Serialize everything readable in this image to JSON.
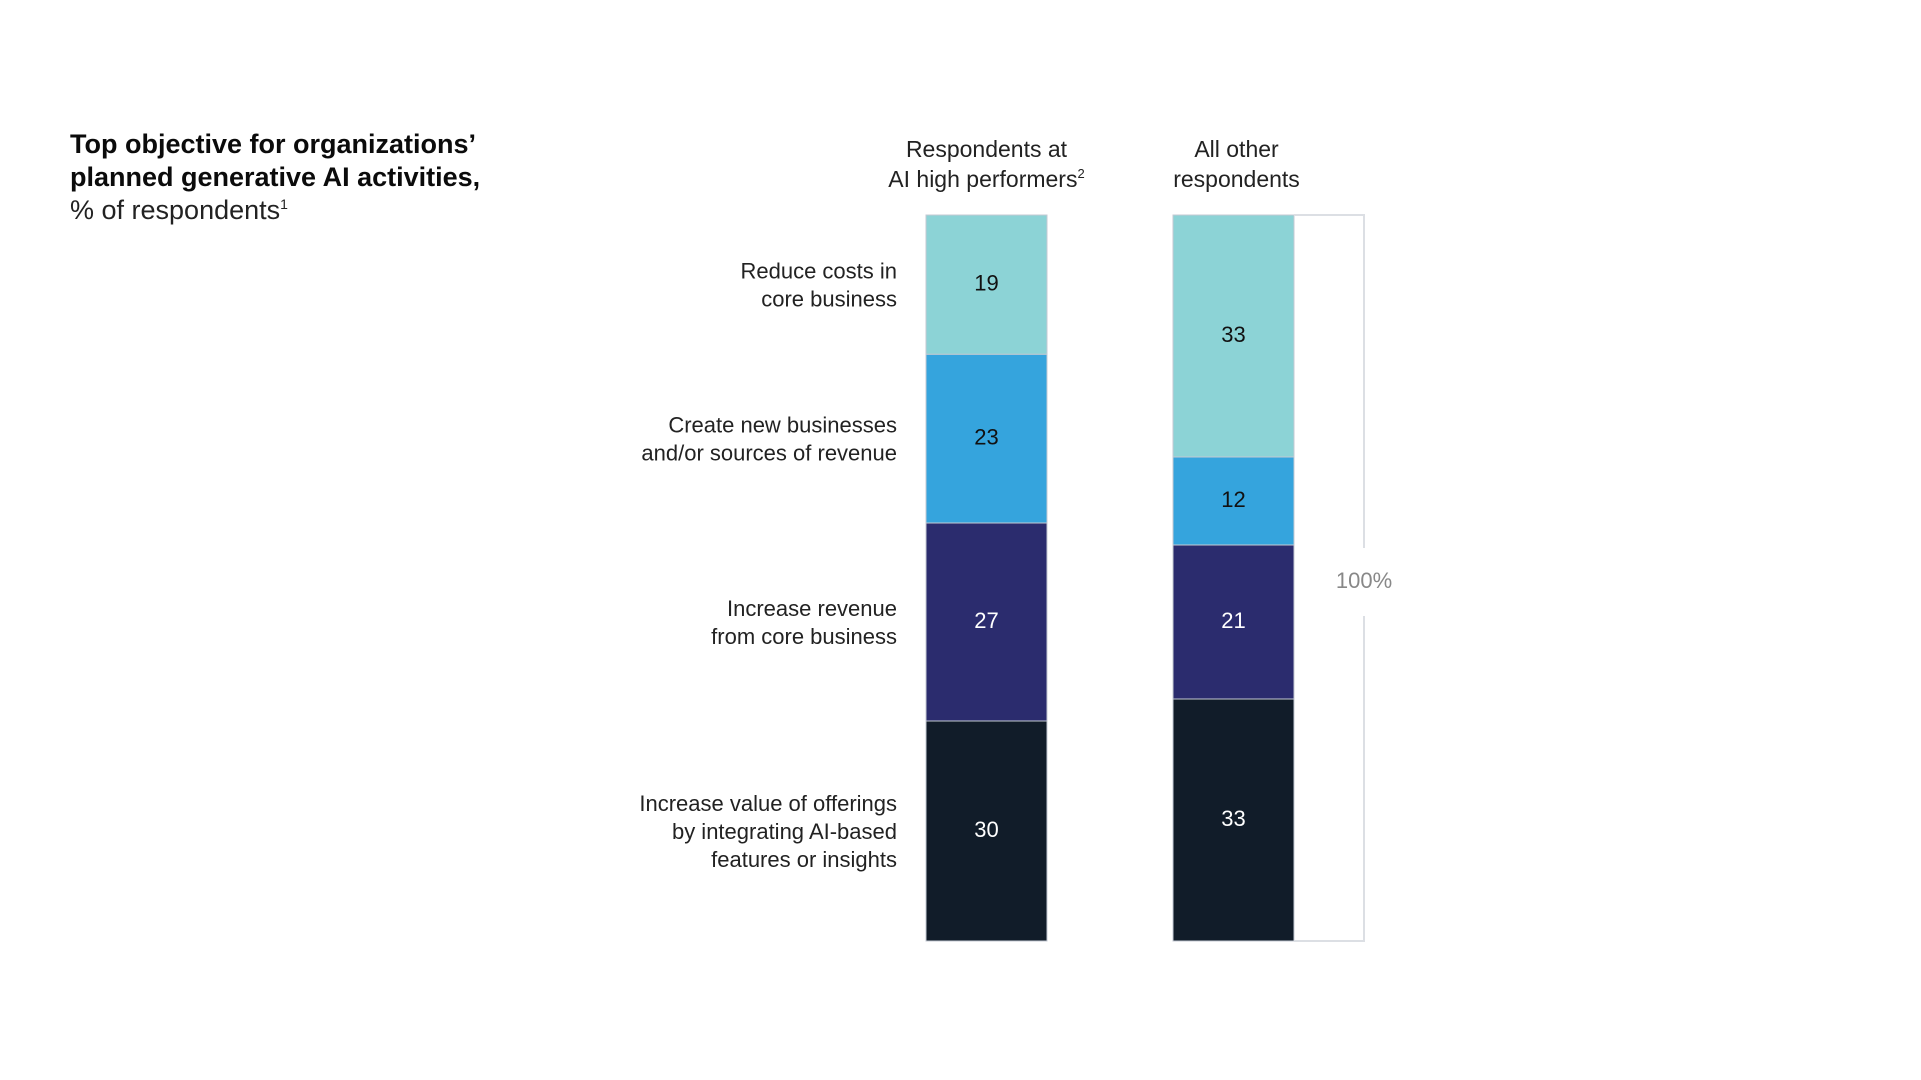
{
  "title": {
    "line1": "Top objective for organizations’",
    "line2": "planned generative AI activities,",
    "subtitle": "% of respondents",
    "subtitle_note": "1"
  },
  "chart_data": {
    "type": "bar",
    "stacked": true,
    "columns": [
      {
        "lines": [
          "Respondents at",
          "AI high performers"
        ],
        "note": "2"
      },
      {
        "lines": [
          "All other",
          "respondents"
        ],
        "note": ""
      }
    ],
    "series": [
      {
        "name": "Reduce costs in core business",
        "label_lines": [
          "Reduce costs in",
          "core business"
        ],
        "color": "#8cd3d6",
        "text_color": "#111111",
        "values": [
          19,
          33
        ]
      },
      {
        "name": "Create new businesses and/or sources of revenue",
        "label_lines": [
          "Create new businesses",
          "and/or sources of revenue"
        ],
        "color": "#35a4dd",
        "text_color": "#111111",
        "values": [
          23,
          12
        ]
      },
      {
        "name": "Increase revenue from core business",
        "label_lines": [
          "Increase revenue",
          "from core business"
        ],
        "color": "#2b2c6e",
        "text_color": "#ffffff",
        "values": [
          27,
          21
        ]
      },
      {
        "name": "Increase value of offerings by integrating AI-based features or insights",
        "label_lines": [
          "Increase value of offerings",
          "by integrating AI-based",
          "features or insights"
        ],
        "color": "#111c29",
        "text_color": "#ffffff",
        "values": [
          30,
          33
        ]
      }
    ],
    "total_label": "100%"
  }
}
